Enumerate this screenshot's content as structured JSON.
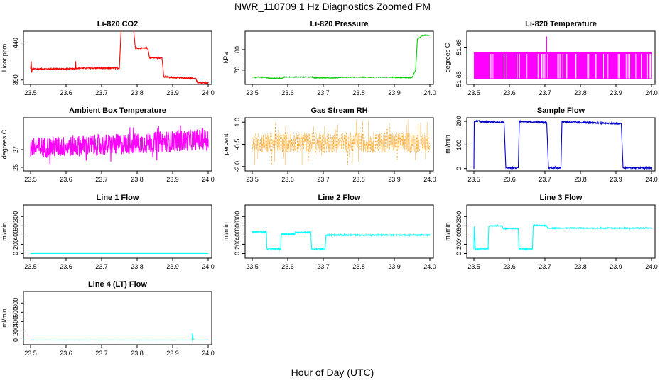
{
  "page": {
    "title": "NWR_110709  1 Hz Diagnostics Zoomed PM",
    "xlabel": "Hour of Day (UTC)"
  },
  "chart_data": [
    {
      "type": "line",
      "title": "Li-820 CO2",
      "ylabel": "Licor ppm",
      "color": "#ff0000",
      "xlim": [
        23.48,
        24.01
      ],
      "xticks": [
        23.5,
        23.6,
        23.7,
        23.8,
        23.9,
        24.0
      ],
      "ylim": [
        384,
        456
      ],
      "yticks": [
        390,
        440
      ],
      "noise": 0.8,
      "series": [
        {
          "x": [
            23.5,
            23.502,
            23.503,
            23.505,
            23.626,
            23.627,
            23.628,
            23.629,
            23.75,
            23.755,
            23.79,
            23.795,
            23.83,
            23.835,
            23.855,
            23.86,
            23.87,
            23.875,
            23.965,
            23.97,
            24.0
          ],
          "y": [
            405,
            415,
            400,
            405,
            405,
            416,
            405,
            406,
            406,
            458,
            458,
            433,
            433,
            420,
            420,
            420,
            420,
            394,
            392,
            386,
            386
          ]
        }
      ]
    },
    {
      "type": "line",
      "title": "Li-820 Pressure",
      "ylabel": "kPa",
      "color": "#00cc00",
      "xlim": [
        23.48,
        24.01
      ],
      "xticks": [
        23.5,
        23.6,
        23.7,
        23.8,
        23.9,
        24.0
      ],
      "ylim": [
        63,
        89
      ],
      "yticks": [
        70,
        80
      ],
      "noise": 0.15,
      "series": [
        {
          "x": [
            23.5,
            23.54,
            23.545,
            23.585,
            23.59,
            23.67,
            23.675,
            23.74,
            23.745,
            23.9,
            23.905,
            23.95,
            23.96,
            23.965,
            23.98,
            24.0
          ],
          "y": [
            66.5,
            66.5,
            66.0,
            66.0,
            66.6,
            66.6,
            66.2,
            66.2,
            66.5,
            66.5,
            66.3,
            66.3,
            70,
            85,
            87,
            87
          ]
        }
      ]
    },
    {
      "type": "line",
      "title": "Li-820 Temperature",
      "ylabel": "degrees C",
      "color": "#ff00ff",
      "xlim": [
        23.48,
        24.01
      ],
      "xticks": [
        23.5,
        23.6,
        23.7,
        23.8,
        23.9,
        24.0
      ],
      "ylim": [
        51.645,
        51.695
      ],
      "yticks": [
        51.65,
        51.68
      ],
      "bands": [
        51.65,
        51.675
      ],
      "spike": {
        "x": 23.705,
        "y": 51.69
      }
    },
    {
      "type": "line",
      "title": "Ambient Box Temperature",
      "ylabel": "degrees C",
      "color": "#ff00ff",
      "xlim": [
        23.48,
        24.01
      ],
      "xticks": [
        23.5,
        23.6,
        23.7,
        23.8,
        23.9,
        24.0
      ],
      "ylim": [
        25.8,
        28.8
      ],
      "yticks": [
        26.0,
        27.0
      ],
      "noise": 0.6,
      "series": [
        {
          "x": [
            23.5,
            23.75,
            24.0
          ],
          "y": [
            27.1,
            27.3,
            27.6
          ]
        }
      ]
    },
    {
      "type": "scatter",
      "title": "Gas Stream RH",
      "ylabel": "percent",
      "color": "#ff9900",
      "xlim": [
        23.48,
        24.01
      ],
      "xticks": [
        23.5,
        23.6,
        23.7,
        23.8,
        23.9,
        24.0
      ],
      "ylim": [
        -2.3,
        1.3
      ],
      "yticks": [
        1.0,
        -0.5,
        -2.0
      ],
      "noise": 0.7,
      "series": [
        {
          "x": [
            23.5,
            24.0
          ],
          "y": [
            -0.4,
            -0.35
          ]
        }
      ]
    },
    {
      "type": "line",
      "title": "Sample Flow",
      "ylabel": "ml/min",
      "color": "#0000cc",
      "xlim": [
        23.48,
        24.01
      ],
      "xticks": [
        23.5,
        23.6,
        23.7,
        23.8,
        23.9,
        24.0
      ],
      "ylim": [
        -10,
        215
      ],
      "yticks": [
        0,
        100,
        200
      ],
      "noise": 3,
      "series": [
        {
          "x": [
            23.5,
            23.501,
            23.505,
            23.585,
            23.59,
            23.625,
            23.628,
            23.705,
            23.71,
            23.745,
            23.748,
            23.915,
            23.92,
            24.0
          ],
          "y": [
            0,
            200,
            200,
            195,
            3,
            3,
            200,
            195,
            3,
            3,
            198,
            190,
            3,
            3
          ]
        }
      ]
    },
    {
      "type": "line",
      "title": "Line 1 Flow",
      "ylabel": "ml/min",
      "color": "#00ffff",
      "xlim": [
        23.48,
        24.01
      ],
      "xticks": [
        23.5,
        23.6,
        23.7,
        23.8,
        23.9,
        24.0
      ],
      "ylim": [
        -100,
        1050
      ],
      "yticks": [
        0,
        200,
        400,
        600,
        800
      ],
      "noise": 0,
      "series": [
        {
          "x": [
            23.5,
            24.0
          ],
          "y": [
            0,
            0
          ]
        }
      ]
    },
    {
      "type": "line",
      "title": "Line 2 Flow",
      "ylabel": "ml/min",
      "color": "#00ffff",
      "xlim": [
        23.48,
        24.01
      ],
      "xticks": [
        23.5,
        23.6,
        23.7,
        23.8,
        23.9,
        24.0
      ],
      "ylim": [
        -100,
        1050
      ],
      "yticks": [
        0,
        200,
        400,
        600,
        800
      ],
      "noise": 12,
      "series": [
        {
          "x": [
            23.5,
            23.54,
            23.541,
            23.58,
            23.582,
            23.62,
            23.622,
            23.665,
            23.667,
            23.705,
            23.708,
            24.0
          ],
          "y": [
            470,
            470,
            100,
            100,
            420,
            420,
            460,
            460,
            100,
            100,
            400,
            400
          ]
        }
      ]
    },
    {
      "type": "line",
      "title": "Line 3 Flow",
      "ylabel": "ml/min",
      "color": "#00ffff",
      "xlim": [
        23.48,
        24.01
      ],
      "xticks": [
        23.5,
        23.6,
        23.7,
        23.8,
        23.9,
        24.0
      ],
      "ylim": [
        -100,
        1050
      ],
      "yticks": [
        0,
        200,
        400,
        600,
        800
      ],
      "noise": 10,
      "series": [
        {
          "x": [
            23.5,
            23.501,
            23.504,
            23.54,
            23.542,
            23.58,
            23.582,
            23.625,
            23.627,
            23.665,
            23.667,
            23.705,
            23.708,
            24.0
          ],
          "y": [
            100,
            580,
            100,
            100,
            600,
            600,
            540,
            540,
            100,
            100,
            610,
            600,
            550,
            550
          ]
        }
      ]
    },
    {
      "type": "line",
      "title": "Line 4 (LT) Flow",
      "ylabel": "ml/min",
      "color": "#00ffff",
      "xlim": [
        23.48,
        24.01
      ],
      "xticks": [
        23.5,
        23.6,
        23.7,
        23.8,
        23.9,
        24.0
      ],
      "ylim": [
        -100,
        1050
      ],
      "yticks": [
        0,
        200,
        400,
        600,
        800
      ],
      "noise": 2,
      "series": [
        {
          "x": [
            23.5,
            23.955,
            23.956,
            23.958,
            23.96,
            24.0
          ],
          "y": [
            0,
            0,
            150,
            20,
            0,
            0
          ]
        }
      ]
    }
  ]
}
